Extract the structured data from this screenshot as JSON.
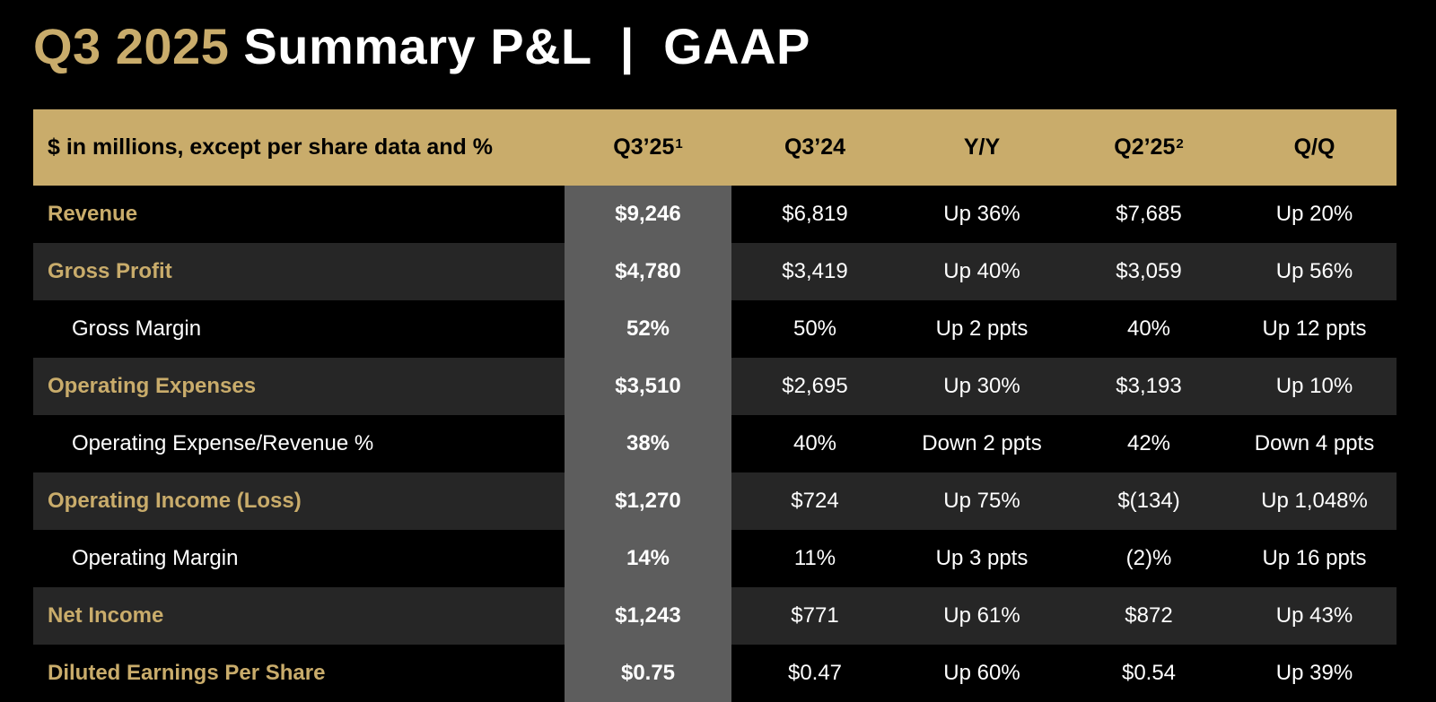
{
  "title": {
    "accent": "Q3 2025",
    "main": "Summary P&L  |  GAAP"
  },
  "header": {
    "label": "$ in millions, except per share data and %",
    "q325": "Q3’25",
    "q325_note": "1",
    "q324": "Q3’24",
    "yy": "Y/Y",
    "q225": "Q2’25",
    "q225_note": "2",
    "qq": "Q/Q"
  },
  "rows": [
    {
      "label": "Revenue",
      "q325": "$9,246",
      "q324": "$6,819",
      "yy": "Up 36%",
      "q225": "$7,685",
      "qq": "Up 20%"
    },
    {
      "label": "Gross Profit",
      "q325": "$4,780",
      "q324": "$3,419",
      "yy": "Up 40%",
      "q225": "$3,059",
      "qq": "Up 56%"
    },
    {
      "label": "Gross Margin",
      "q325": "52%",
      "q324": "50%",
      "yy": "Up 2 ppts",
      "q225": "40%",
      "qq": "Up 12 ppts"
    },
    {
      "label": "Operating Expenses",
      "q325": "$3,510",
      "q324": "$2,695",
      "yy": "Up 30%",
      "q225": "$3,193",
      "qq": "Up 10%"
    },
    {
      "label": "Operating Expense/Revenue %",
      "q325": "38%",
      "q324": "40%",
      "yy": "Down 2 ppts",
      "q225": "42%",
      "qq": "Down 4 ppts"
    },
    {
      "label": "Operating Income (Loss)",
      "q325": "$1,270",
      "q324": "$724",
      "yy": "Up 75%",
      "q225": "$(134)",
      "qq": "Up 1,048%"
    },
    {
      "label": "Operating Margin",
      "q325": "14%",
      "q324": "11%",
      "yy": "Up 3 ppts",
      "q225": "(2)%",
      "qq": "Up 16 ppts"
    },
    {
      "label": "Net Income",
      "q325": "$1,243",
      "q324": "$771",
      "yy": "Up 61%",
      "q225": "$872",
      "qq": "Up 43%"
    },
    {
      "label": "Diluted Earnings Per Share",
      "q325": "$0.75",
      "q324": "$0.47",
      "yy": "Up 60%",
      "q225": "$0.54",
      "qq": "Up 39%"
    }
  ],
  "colors": {
    "accent": "#c9ac6b",
    "background": "#000000",
    "row_alt": "#262626",
    "highlight_column": "#5d5d5d"
  }
}
